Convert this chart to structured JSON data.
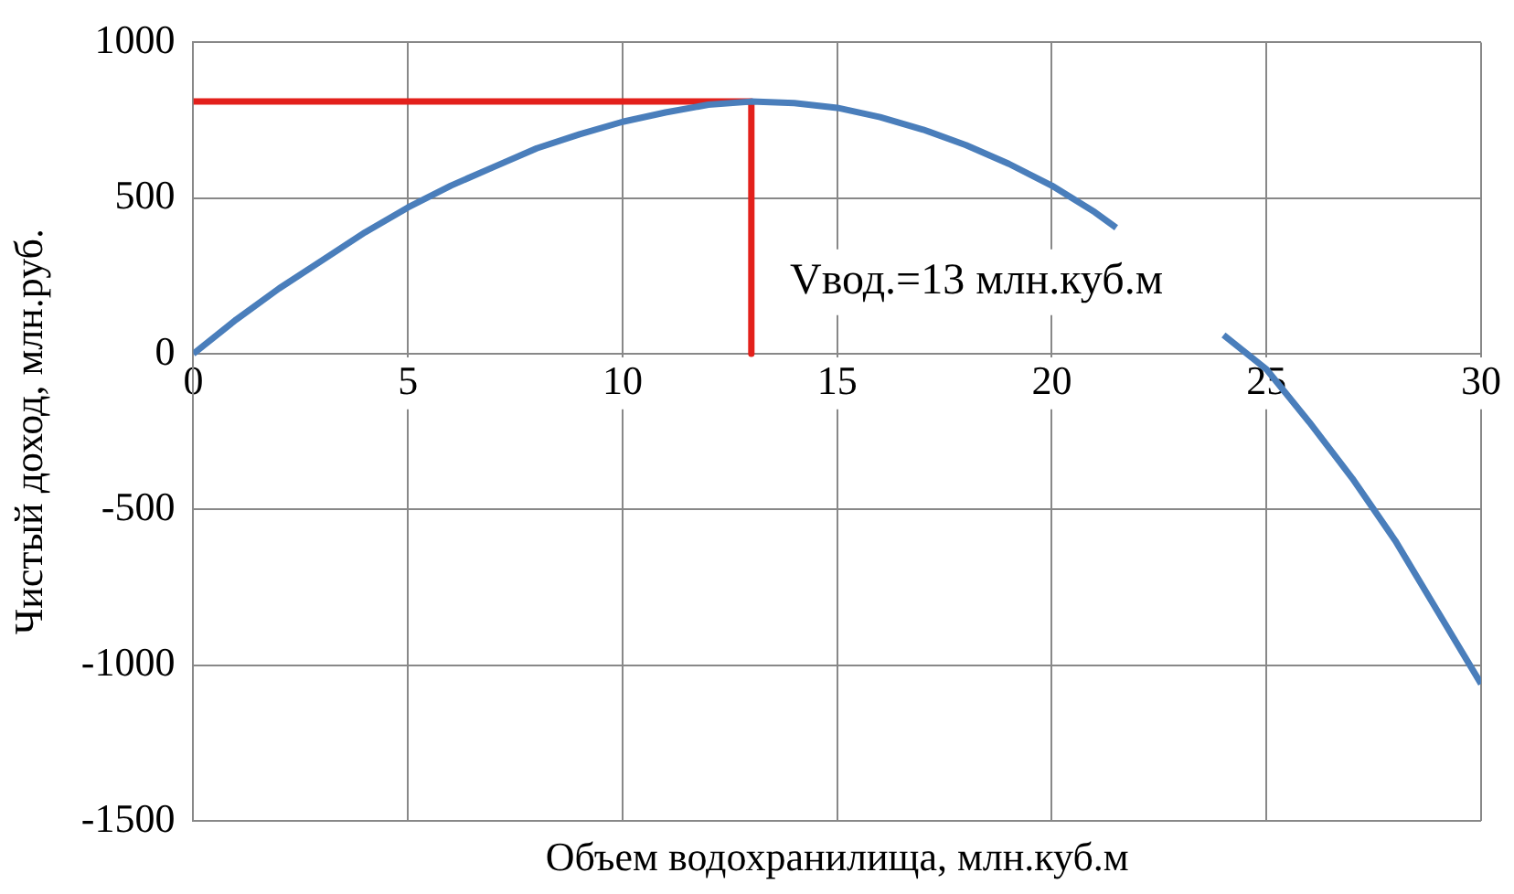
{
  "chart_data": {
    "type": "line",
    "xlabel": "Объем водохранилища, млн.куб.м",
    "ylabel": "Чистый доход, млн.руб.",
    "xlim": [
      0,
      30
    ],
    "xticks": [
      0,
      5,
      10,
      15,
      20,
      25,
      30
    ],
    "ylim": [
      -1500,
      1000
    ],
    "yticks": [
      -1500,
      -1000,
      -500,
      0,
      500,
      1000
    ],
    "grid": true,
    "legend": false,
    "marker": "none",
    "line_style": "solid",
    "annotations": [
      "Vвод.=13 млн.куб.м"
    ],
    "series": [
      {
        "color": "#4a7ebb",
        "x": [
          0,
          1,
          2,
          3,
          4,
          5,
          6,
          7,
          8,
          9,
          10,
          11,
          12,
          13,
          14,
          15,
          16,
          17,
          18,
          19,
          20,
          21,
          21.5,
          22.5,
          24,
          25,
          26,
          27,
          28,
          29,
          30
        ],
        "values": [
          0,
          110,
          210,
          300,
          390,
          470,
          540,
          600,
          660,
          705,
          745,
          775,
          800,
          810,
          805,
          790,
          760,
          720,
          670,
          610,
          540,
          455,
          405,
          null,
          60,
          -50,
          -220,
          -400,
          -600,
          -830,
          -1060
        ]
      },
      {
        "color": "#e3201b",
        "x": [
          0,
          13,
          13
        ],
        "values": [
          810,
          810,
          0
        ]
      }
    ]
  }
}
